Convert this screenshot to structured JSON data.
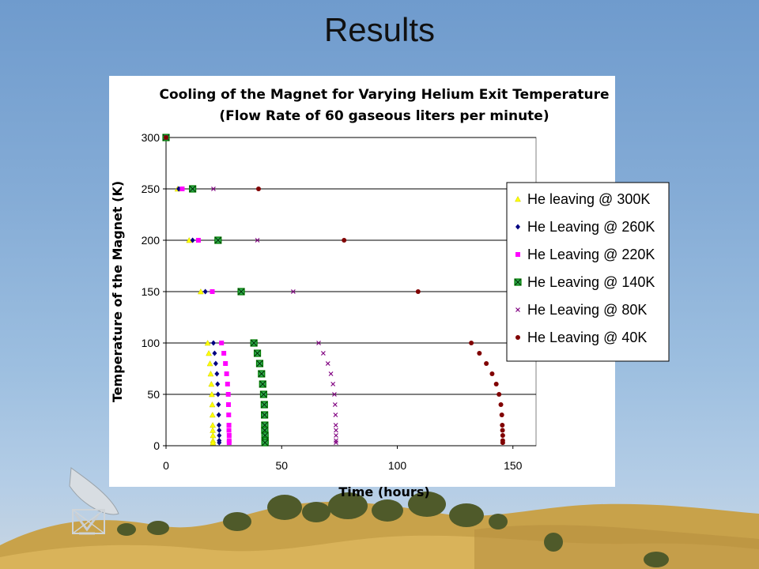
{
  "slide": {
    "title": "Results"
  },
  "chart_data": {
    "type": "scatter",
    "title": "Cooling of the Magnet for Varying Helium Exit Temperature",
    "subtitle": "(Flow Rate of 60 gaseous liters per minute)",
    "xlabel": "Time (hours)",
    "ylabel": "Temperature of the Magnet (K)",
    "xlim": [
      0,
      160
    ],
    "ylim": [
      0,
      300
    ],
    "xticks": [
      0,
      50,
      100,
      150
    ],
    "yticks": [
      0,
      50,
      100,
      150,
      200,
      250,
      300
    ],
    "grid": "horizontal",
    "legend_position": "right",
    "series": [
      {
        "name": "He leaving @ 300K",
        "color": "#ffff00",
        "marker": "triangle",
        "x": [
          0,
          5,
          10,
          15,
          18,
          18.5,
          19,
          19.3,
          19.6,
          19.8,
          20,
          20.1,
          20.2,
          20.2,
          20.3,
          20.3,
          20.3
        ],
        "y": [
          300,
          250,
          200,
          150,
          100,
          90,
          80,
          70,
          60,
          50,
          40,
          30,
          20,
          15,
          10,
          5,
          3
        ]
      },
      {
        "name": "He Leaving @ 260K",
        "color": "#000080",
        "marker": "diamond",
        "x": [
          0,
          5.5,
          11.5,
          17,
          20.5,
          21,
          21.5,
          22,
          22.3,
          22.5,
          22.7,
          22.8,
          22.9,
          23,
          23,
          23,
          23
        ],
        "y": [
          300,
          250,
          200,
          150,
          100,
          90,
          80,
          70,
          60,
          50,
          40,
          30,
          20,
          15,
          10,
          5,
          3
        ]
      },
      {
        "name": "He Leaving @ 220K",
        "color": "#ff00ff",
        "marker": "square",
        "x": [
          0,
          7,
          14,
          20,
          24,
          25,
          25.7,
          26.2,
          26.6,
          26.9,
          27,
          27.1,
          27.2,
          27.2,
          27.3,
          27.3,
          27.3
        ],
        "y": [
          300,
          250,
          200,
          150,
          100,
          90,
          80,
          70,
          60,
          50,
          40,
          30,
          20,
          15,
          10,
          5,
          3
        ]
      },
      {
        "name": "He Leaving @ 140K",
        "color": "#008000",
        "marker": "boxx",
        "x": [
          0,
          11.5,
          22.5,
          32.5,
          38,
          39.5,
          40.5,
          41.3,
          41.8,
          42.2,
          42.5,
          42.6,
          42.7,
          42.7,
          42.8,
          42.8,
          42.8
        ],
        "y": [
          300,
          250,
          200,
          150,
          100,
          90,
          80,
          70,
          60,
          50,
          40,
          30,
          20,
          15,
          10,
          5,
          3
        ]
      },
      {
        "name": "He Leaving @ 80K",
        "color": "#800080",
        "marker": "x",
        "x": [
          0,
          20.5,
          39.5,
          55,
          66,
          68,
          70,
          71.3,
          72.2,
          72.8,
          73.1,
          73.3,
          73.4,
          73.5,
          73.5,
          73.5,
          73.5
        ],
        "y": [
          300,
          250,
          200,
          150,
          100,
          90,
          80,
          70,
          60,
          50,
          40,
          30,
          20,
          15,
          10,
          5,
          3
        ]
      },
      {
        "name": "He Leaving @ 40K",
        "color": "#800000",
        "marker": "circle",
        "x": [
          0,
          40,
          77,
          109,
          132,
          135.5,
          138.5,
          141,
          142.8,
          144,
          144.8,
          145.2,
          145.4,
          145.5,
          145.6,
          145.6,
          145.6
        ],
        "y": [
          300,
          250,
          200,
          150,
          100,
          90,
          80,
          70,
          60,
          50,
          40,
          30,
          20,
          15,
          10,
          5,
          3
        ]
      }
    ]
  }
}
